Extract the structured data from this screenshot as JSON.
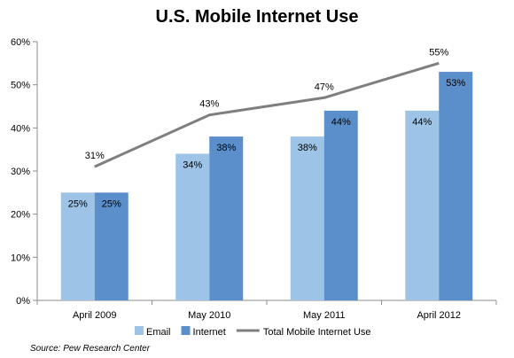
{
  "chart_data": {
    "type": "bar",
    "title": "U.S. Mobile Internet Use",
    "categories": [
      "April 2009",
      "May 2010",
      "May 2011",
      "April 2012"
    ],
    "series": [
      {
        "name": "Email",
        "type": "bar",
        "values": [
          25,
          34,
          38,
          44
        ],
        "color": "#9dc3e6"
      },
      {
        "name": "Internet",
        "type": "bar",
        "values": [
          25,
          38,
          44,
          53
        ],
        "color": "#5b8fcb"
      },
      {
        "name": "Total Mobile Internet Use",
        "type": "line",
        "values": [
          31,
          43,
          47,
          55
        ],
        "color": "#7f7f7f"
      }
    ],
    "data_label_suffix": "%",
    "ylim": [
      0,
      60
    ],
    "yticks": [
      "0%",
      "10%",
      "20%",
      "30%",
      "40%",
      "50%",
      "60%"
    ],
    "grid": false,
    "legend_position": "bottom"
  },
  "source": "Source: Pew Research Center"
}
